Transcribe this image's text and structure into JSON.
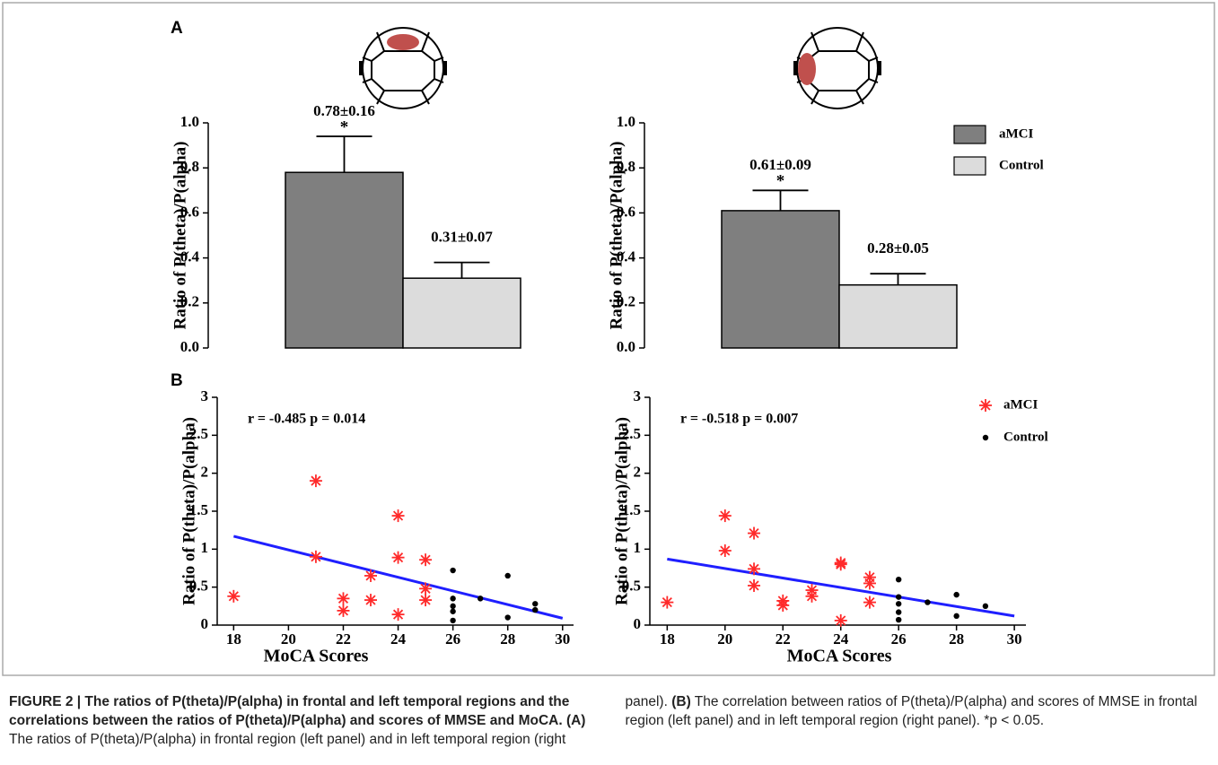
{
  "panel_labels": [
    "A",
    "B"
  ],
  "chart_data": [
    {
      "type": "bar",
      "ylabel": "Ratio of P(theta)/P(alpha)",
      "categories": [
        null
      ],
      "ylim": [
        0,
        1.0
      ],
      "yticks": [
        {
          "value": 0,
          "label": "0.0"
        },
        0.2,
        0.4,
        0.6,
        0.8,
        {
          "value": 1.0,
          "label": "1.0"
        }
      ],
      "series": [
        {
          "color": "#7f7f7f",
          "values": [
            0.78
          ],
          "errors": [
            0.16
          ],
          "value_labels": [
            "0.78±0.16"
          ],
          "significance": [
            "*"
          ]
        },
        {
          "color": "#dcdcdc",
          "values": [
            0.31
          ],
          "errors": [
            0.07
          ],
          "value_labels": [
            "0.31±0.07"
          ]
        }
      ]
    },
    {
      "type": "bar",
      "ylabel": "Ratio of P(theta)/P(alpha)",
      "categories": [
        null
      ],
      "legend": "upper right",
      "ylim": [
        0,
        1.0
      ],
      "yticks": [
        {
          "value": 0,
          "label": "0.0"
        },
        0.2,
        0.4,
        0.6,
        0.8,
        {
          "value": 1.0,
          "label": "1.0"
        }
      ],
      "series": [
        {
          "name": "aMCI",
          "color": "#7f7f7f",
          "values": [
            0.61
          ],
          "errors": [
            0.09
          ],
          "value_labels": [
            "0.61±0.09"
          ],
          "significance": [
            "*"
          ]
        },
        {
          "name": "Control",
          "color": "#dcdcdc",
          "values": [
            0.28
          ],
          "errors": [
            0.05
          ],
          "value_labels": [
            "0.28±0.05"
          ]
        }
      ]
    },
    {
      "type": "scatter",
      "ylabel": "Ratio of P(theta)/P(alpha)",
      "xlabel": "MoCA Scores",
      "annotation": "r = -0.485 p = 0.014",
      "xlim": [
        17.4,
        30.4
      ],
      "xticks": [
        18,
        20,
        22,
        24,
        26,
        28,
        30
      ],
      "ylim": [
        0,
        3
      ],
      "yticks": [
        0,
        0.5,
        1,
        1.5,
        2,
        2.5,
        3
      ],
      "series": [
        {
          "marker": "star",
          "color": "#ff2a2a",
          "x": [
            18,
            21,
            21,
            22,
            22,
            23,
            23,
            24,
            24,
            24,
            25,
            25,
            25
          ],
          "values": [
            0.38,
            1.9,
            0.9,
            0.35,
            0.19,
            0.65,
            0.33,
            1.44,
            0.89,
            0.14,
            0.86,
            0.48,
            0.33
          ]
        },
        {
          "marker": "dot",
          "color": "#000000",
          "x": [
            26,
            26,
            26,
            26,
            26,
            27,
            28,
            28,
            29,
            29
          ],
          "values": [
            0.72,
            0.35,
            0.25,
            0.18,
            0.06,
            0.35,
            0.65,
            0.1,
            0.28,
            0.2
          ]
        }
      ],
      "fit_line": {
        "color": "#1f1fff",
        "x": [
          18,
          30
        ],
        "values": [
          1.17,
          0.09
        ]
      }
    },
    {
      "type": "scatter",
      "ylabel": "Ratio of P(theta)/P(alpha)",
      "xlabel": "MoCA Scores",
      "annotation": "r = -0.518 p = 0.007",
      "legend": "upper right",
      "xlim": [
        17.4,
        30.4
      ],
      "xticks": [
        18,
        20,
        22,
        24,
        26,
        28,
        30
      ],
      "ylim": [
        0,
        3
      ],
      "yticks": [
        0,
        0.5,
        1,
        1.5,
        2,
        2.5,
        3
      ],
      "series": [
        {
          "name": "aMCI",
          "marker": "star",
          "color": "#ff2a2a",
          "x": [
            18,
            20,
            20,
            21,
            21,
            21,
            22,
            22,
            23,
            23,
            24,
            24,
            24,
            25,
            25,
            25
          ],
          "values": [
            0.3,
            1.44,
            0.98,
            1.21,
            0.74,
            0.52,
            0.32,
            0.26,
            0.46,
            0.38,
            0.82,
            0.8,
            0.06,
            0.63,
            0.55,
            0.3
          ]
        },
        {
          "name": "Control",
          "marker": "dot",
          "color": "#000000",
          "x": [
            26,
            26,
            26,
            26,
            26,
            27,
            28,
            28,
            29
          ],
          "values": [
            0.6,
            0.37,
            0.28,
            0.17,
            0.07,
            0.3,
            0.4,
            0.12,
            0.25
          ]
        }
      ],
      "fit_line": {
        "color": "#1f1fff",
        "x": [
          18,
          30
        ],
        "values": [
          0.87,
          0.12
        ]
      }
    }
  ],
  "caption": {
    "title": "FIGURE 2 | The ratios of P(theta)/P(alpha) in frontal and left temporal regions and the correlations between the ratios of P(theta)/P(alpha) and scores of MMSE and MoCA.",
    "a_label": "(A)",
    "a_text": "The ratios of P(theta)/P(alpha) in frontal region (left panel) and in left temporal region (right panel).",
    "b_label": "(B)",
    "b_text": "The correlation between ratios of P(theta)/P(alpha) and scores of MMSE in frontal region (left panel) and in left temporal region (right panel).",
    "note": "*p < 0.05."
  }
}
